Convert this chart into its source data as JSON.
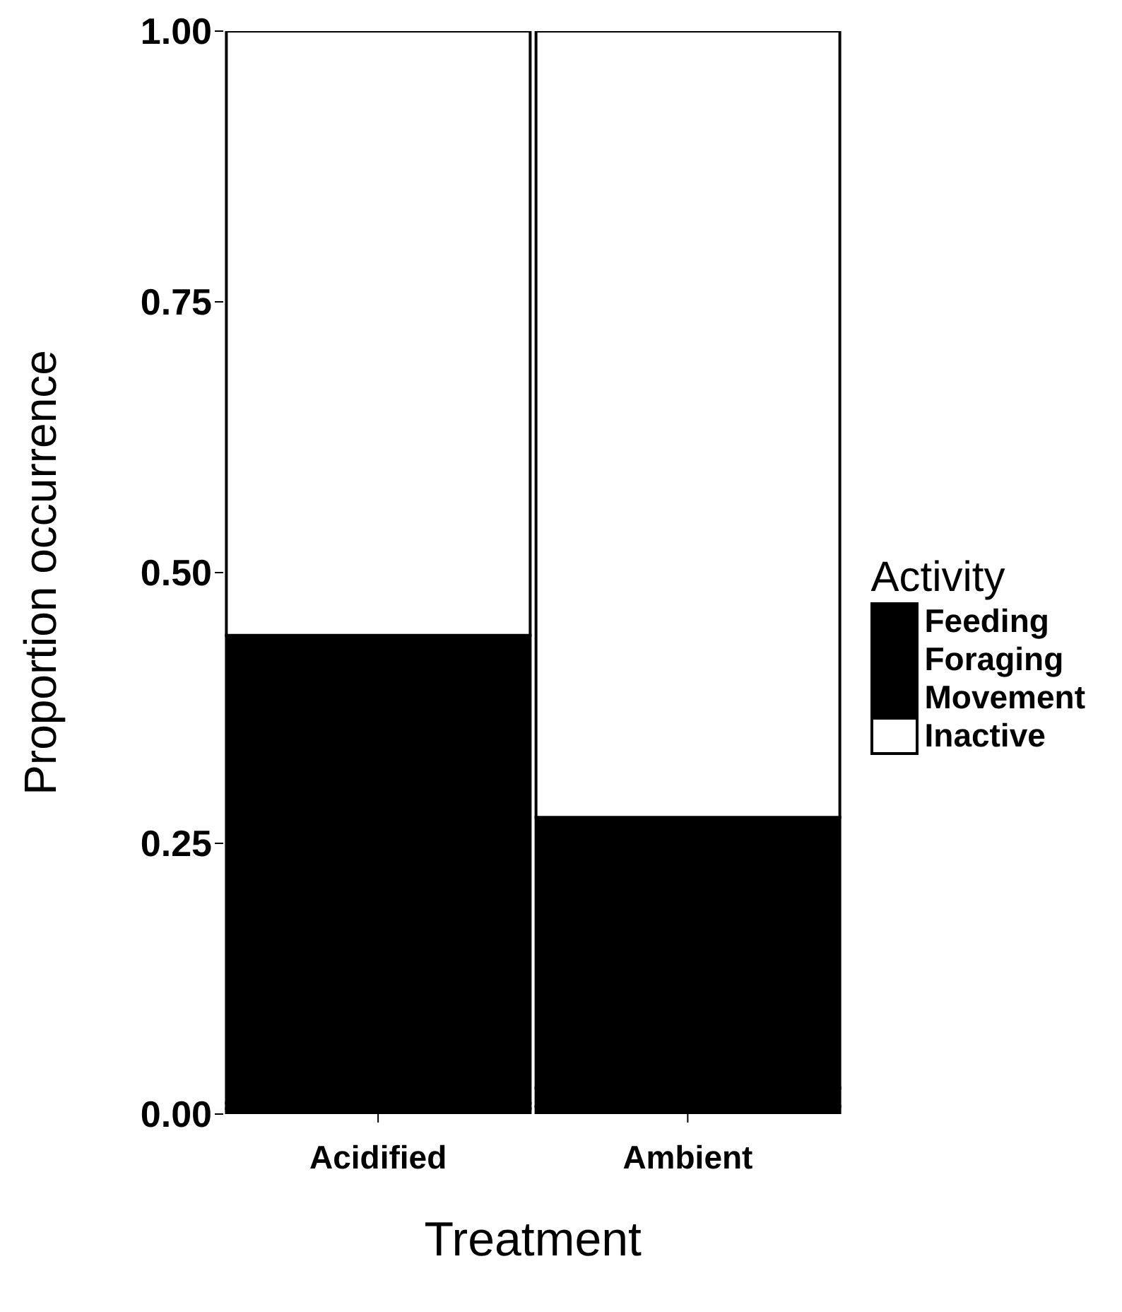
{
  "chart_data": {
    "type": "bar",
    "stacked": true,
    "xlabel": "Treatment",
    "ylabel": "Proportion occurrence",
    "legend_title": "Activity",
    "legend": "right",
    "grid": false,
    "categories": [
      "Acidified",
      "Ambient"
    ],
    "series": [
      {
        "name": "Feeding",
        "color": "#000000",
        "values": [
          0.005,
          0.007
        ]
      },
      {
        "name": "Foraging",
        "color": "#000000",
        "values": [
          0.005,
          0.017
        ]
      },
      {
        "name": "Movement",
        "color": "#000000",
        "values": [
          0.432,
          0.25
        ]
      },
      {
        "name": "Inactive",
        "color": "#ffffff",
        "values": [
          0.558,
          0.726
        ]
      }
    ],
    "ylim": [
      0,
      1
    ],
    "yticks": [
      {
        "value": 0,
        "label": "0.00"
      },
      {
        "value": 0.25,
        "label": "0.25"
      },
      {
        "value": 0.5,
        "label": "0.50"
      },
      {
        "value": 0.75,
        "label": "0.75"
      },
      {
        "value": 1,
        "label": "1.00"
      }
    ]
  }
}
